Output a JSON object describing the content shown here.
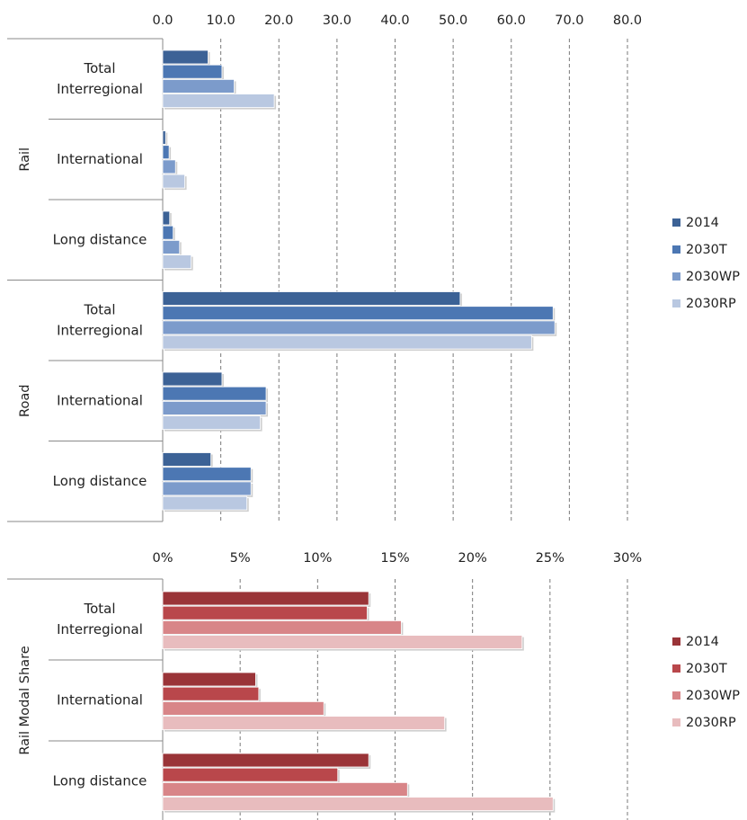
{
  "colors": {
    "blue": [
      "#3c6296",
      "#4c77b3",
      "#7c9bcb",
      "#b9c8e1"
    ],
    "red": [
      "#9a3438",
      "#b9474b",
      "#d88588",
      "#e8bcbe"
    ]
  },
  "chart_data": [
    {
      "type": "bar",
      "orientation": "horizontal",
      "xlim": [
        0,
        80
      ],
      "ticks": [
        "0.0",
        "10.0",
        "20.0",
        "30.0",
        "40.0",
        "50.0",
        "60.0",
        "70.0",
        "80.0"
      ],
      "group_labels": [
        "Rail",
        "Road"
      ],
      "categories": [
        {
          "group": "Rail",
          "label": [
            "Total",
            "Interregional"
          ]
        },
        {
          "group": "Rail",
          "label": [
            "International"
          ]
        },
        {
          "group": "Rail",
          "label": [
            "Long distance"
          ]
        },
        {
          "group": "Road",
          "label": [
            "Total",
            "Interregional"
          ]
        },
        {
          "group": "Road",
          "label": [
            "International"
          ]
        },
        {
          "group": "Road",
          "label": [
            "Long distance"
          ]
        }
      ],
      "series": [
        {
          "name": "2014",
          "values": [
            7.8,
            0.5,
            1.2,
            51.2,
            10.2,
            8.3
          ]
        },
        {
          "name": "2030T",
          "values": [
            10.2,
            1.1,
            1.8,
            67.2,
            17.8,
            15.2
          ]
        },
        {
          "name": "2030WP",
          "values": [
            12.3,
            2.2,
            2.9,
            67.5,
            17.8,
            15.2
          ]
        },
        {
          "name": "2030RP",
          "values": [
            19.2,
            3.8,
            4.9,
            63.5,
            16.8,
            14.5
          ]
        }
      ],
      "legend": [
        "2014",
        "2030T",
        "2030WP",
        "2030RP"
      ],
      "legend_position": "right",
      "grid": true
    },
    {
      "type": "bar",
      "orientation": "horizontal",
      "xlim": [
        0,
        30
      ],
      "ticks": [
        "0%",
        "5%",
        "10%",
        "15%",
        "20%",
        "25%",
        "30%"
      ],
      "group_labels": [
        "Rail Modal Share"
      ],
      "categories": [
        {
          "group": "Rail Modal Share",
          "label": [
            "Total",
            "Interregional"
          ]
        },
        {
          "group": "Rail Modal Share",
          "label": [
            "International"
          ]
        },
        {
          "group": "Rail Modal Share",
          "label": [
            "Long distance"
          ]
        }
      ],
      "series": [
        {
          "name": "2014",
          "values": [
            13.3,
            6.0,
            13.3
          ]
        },
        {
          "name": "2030T",
          "values": [
            13.2,
            6.2,
            11.3
          ]
        },
        {
          "name": "2030WP",
          "values": [
            15.4,
            10.4,
            15.8
          ]
        },
        {
          "name": "2030RP",
          "values": [
            23.2,
            18.2,
            25.2
          ]
        }
      ],
      "legend": [
        "2014",
        "2030T",
        "2030WP",
        "2030RP"
      ],
      "legend_position": "right",
      "grid": true
    }
  ]
}
